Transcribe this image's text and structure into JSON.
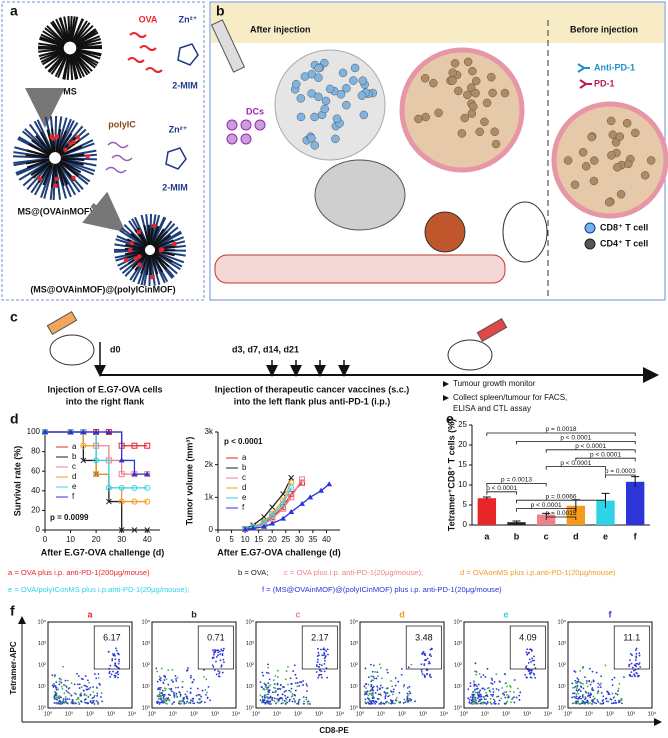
{
  "panel_a": {
    "label": "a",
    "ms": "MS",
    "ova": "OVA",
    "zn1": "Zn²⁺",
    "mim1": "2-MIM",
    "ms_ova": "MS@(OVAinMOF)",
    "polyic": "polyIC",
    "zn2": "Zn²⁺",
    "mim2": "2-MIM",
    "final": "(MS@OVAinMOF)@(polyICinMOF)"
  },
  "panel_b": {
    "label": "b",
    "after": "After injection",
    "before": "Before injection",
    "dcs": "DCs",
    "anti_pd1": "Anti-PD-1",
    "pd1": "PD-1",
    "cd8": "CD8⁺ T cell",
    "cd4": "CD4⁺ T cell"
  },
  "panel_c": {
    "label": "c",
    "d0": "d0",
    "days": "d3, d7, d14, d21",
    "inj1": [
      "Injection of E.G7-OVA cells",
      "into the right flank"
    ],
    "inj2": [
      "Injection of therapeutic cancer vaccines (s.c.)",
      "into the left flank plus anti-PD-1 (i.p.)"
    ],
    "steps": [
      "Tumour growth monitor",
      "Collect spleen/tumour for FACS,",
      "ELISA and CTL assay"
    ]
  },
  "chart_data": [
    {
      "type": "line",
      "panel": "d",
      "step": true,
      "ylabel": "Survival rate (%)",
      "xlabel": "After E.G7-OVA challenge (d)",
      "annotation": "p = 0.0099",
      "xlim": [
        0,
        45
      ],
      "xticks": [
        0,
        10,
        20,
        30,
        40
      ],
      "ylim": [
        0,
        100
      ],
      "yticks": [
        0,
        20,
        40,
        60,
        80,
        100
      ],
      "x": [
        0,
        10,
        15,
        20,
        25,
        30,
        35,
        40
      ],
      "series": [
        {
          "name": "a",
          "color": "#e8262a",
          "values": [
            100,
            100,
            100,
            100,
            100,
            86,
            86,
            86
          ]
        },
        {
          "name": "b",
          "color": "#222222",
          "values": [
            100,
            100,
            71,
            57,
            29,
            0,
            0,
            0
          ]
        },
        {
          "name": "c",
          "color": "#f0808c",
          "values": [
            100,
            100,
            100,
            86,
            71,
            57,
            57,
            57
          ]
        },
        {
          "name": "d",
          "color": "#f39a1f",
          "values": [
            100,
            100,
            86,
            57,
            43,
            29,
            29,
            29
          ]
        },
        {
          "name": "e",
          "color": "#2fd3e8",
          "values": [
            100,
            100,
            100,
            71,
            43,
            43,
            43,
            43
          ]
        },
        {
          "name": "f",
          "color": "#2b35d8",
          "values": [
            100,
            100,
            100,
            100,
            100,
            71,
            57,
            57
          ]
        }
      ]
    },
    {
      "type": "line",
      "ylabel": "Tumor volume (mm³)",
      "xlabel": "After E.G7-OVA challenge (d)",
      "annotation": "p < 0.0001",
      "xlim": [
        0,
        45
      ],
      "xticks": [
        0,
        5,
        10,
        15,
        20,
        25,
        30,
        35,
        40
      ],
      "ylim": [
        0,
        3000
      ],
      "yticks": [
        0,
        {
          "value": 1000,
          "label": "1k"
        },
        {
          "value": 2000,
          "label": "2k"
        },
        {
          "value": 3000,
          "label": "3k"
        }
      ],
      "x": [
        10,
        13,
        17,
        20,
        24,
        27,
        31,
        34,
        38,
        41
      ],
      "series": [
        {
          "name": "a",
          "color": "#e8262a",
          "values": [
            30,
            80,
            200,
            400,
            700,
            1100,
            1450,
            null,
            null,
            null
          ]
        },
        {
          "name": "b",
          "color": "#222222",
          "values": [
            40,
            150,
            400,
            700,
            1100,
            1600,
            null,
            null,
            null,
            null
          ]
        },
        {
          "name": "c",
          "color": "#f0808c",
          "values": [
            30,
            70,
            180,
            350,
            650,
            1000,
            1550,
            null,
            null,
            null
          ]
        },
        {
          "name": "d",
          "color": "#f39a1f",
          "values": [
            30,
            90,
            250,
            500,
            900,
            1450,
            null,
            null,
            null,
            null
          ]
        },
        {
          "name": "e",
          "color": "#2fd3e8",
          "values": [
            30,
            90,
            220,
            450,
            800,
            1300,
            null,
            null,
            null,
            null
          ]
        },
        {
          "name": "f",
          "color": "#2b35d8",
          "values": [
            20,
            50,
            100,
            200,
            350,
            550,
            800,
            1000,
            1200,
            1400
          ]
        }
      ]
    },
    {
      "type": "bar",
      "panel": "e",
      "ylabel": "Tetramer⁺CD8⁺ T cells (%)",
      "categories": [
        "a",
        "b",
        "c",
        "d",
        "e",
        "f"
      ],
      "values": [
        6.7,
        0.7,
        2.6,
        4.8,
        6.1,
        10.8
      ],
      "errors": [
        0.3,
        0.3,
        0.3,
        1.5,
        1.8,
        1.3
      ],
      "colors": [
        "#e8262a",
        "#222222",
        "#f0808c",
        "#f39a1f",
        "#2fd3e8",
        "#2b35d8"
      ],
      "ylim": [
        0,
        25
      ],
      "yticks": [
        0,
        5,
        10,
        15,
        20,
        25
      ],
      "brackets": [
        {
          "pair": [
            "a",
            "f"
          ],
          "label": "p = 0.0018"
        },
        {
          "pair": [
            "b",
            "f"
          ],
          "label": "p < 0.0001"
        },
        {
          "pair": [
            "c",
            "f"
          ],
          "label": "p < 0.0001"
        },
        {
          "pair": [
            "d",
            "f"
          ],
          "label": "p < 0.0001"
        },
        {
          "pair": [
            "c",
            "e"
          ],
          "label": "p < 0.0001"
        },
        {
          "pair": [
            "e",
            "f"
          ],
          "label": "p = 0.0003"
        },
        {
          "pair": [
            "a",
            "c"
          ],
          "label": "p = 0.0013"
        },
        {
          "pair": [
            "a",
            "b"
          ],
          "label": "p < 0.0001"
        },
        {
          "pair": [
            "b",
            "e"
          ],
          "label": "p = 0.0066"
        },
        {
          "pair": [
            "b",
            "d"
          ],
          "label": "p < 0.0001"
        },
        {
          "pair": [
            "c",
            "d"
          ],
          "label": "p = 0.0015"
        }
      ]
    }
  ],
  "legend": [
    {
      "text": "a = OVA plus i.p. anti-PD-1(200μg/mouse)",
      "color": "#e8262a"
    },
    {
      "text": "b = OVA;",
      "color": "#222222"
    },
    {
      "text": "c = OVA plus i.p. anti-PD-1(20μg/mouse);",
      "color": "#f0808c"
    },
    {
      "text": "d = OVAonMS plus i.p.anti-PD-1(20μg/mouse)",
      "color": "#f39a1f"
    },
    {
      "text": "e = OVA/polyIConMS plus i.p.anti-PD-1(20μg/mouse);",
      "color": "#2fd3e8"
    },
    {
      "text": "f = (MS@OVAinMOF)@(polyICinMOF) plus i.p. anti-PD-1(20μg/mouse)",
      "color": "#2b35d8"
    }
  ],
  "panel_f": {
    "label": "f",
    "ylabel": "Tetramer-APC",
    "xlabel": "CD8-PE",
    "ticks": [
      "10⁰",
      "10¹",
      "10²",
      "10³",
      "10⁴"
    ],
    "plots": [
      {
        "name": "a",
        "color": "#e8262a",
        "percent": 6.17
      },
      {
        "name": "b",
        "color": "#222222",
        "percent": 0.71
      },
      {
        "name": "c",
        "color": "#f0808c",
        "percent": 2.17
      },
      {
        "name": "d",
        "color": "#f39a1f",
        "percent": 3.48
      },
      {
        "name": "e",
        "color": "#2fd3e8",
        "percent": 4.09
      },
      {
        "name": "f",
        "color": "#2b35d8",
        "percent": 11.1
      }
    ]
  }
}
